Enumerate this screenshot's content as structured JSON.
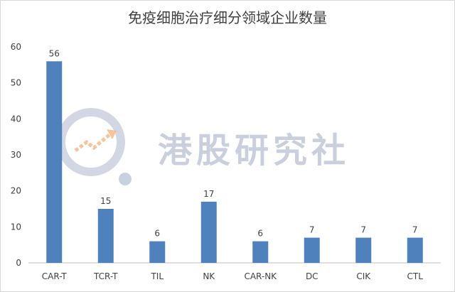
{
  "chart_data": {
    "type": "bar",
    "title": "免疫细胞治疗细分领域企业数量",
    "categories": [
      "CAR-T",
      "TCR-T",
      "TIL",
      "NK",
      "CAR-NK",
      "DC",
      "CIK",
      "CTL"
    ],
    "values": [
      56,
      15,
      6,
      17,
      6,
      7,
      7,
      7
    ],
    "ylim": [
      0,
      60
    ],
    "yticks": [
      0,
      10,
      20,
      30,
      40,
      50,
      60
    ],
    "grid": false,
    "legend": "none",
    "bar_color": "#4f81bd"
  },
  "watermark": {
    "text": "港股研究社"
  }
}
